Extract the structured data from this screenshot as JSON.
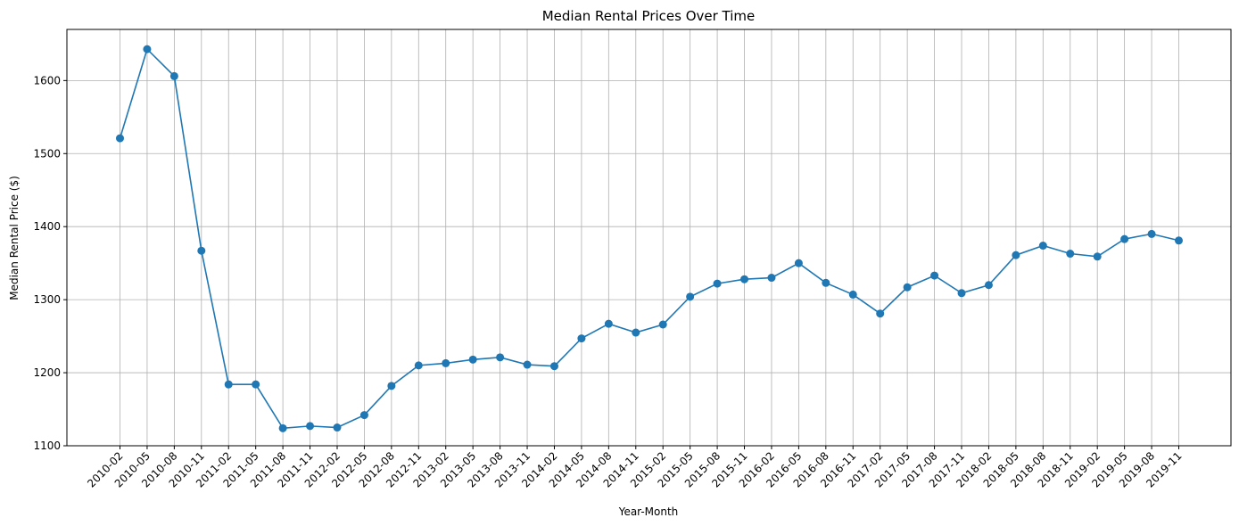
{
  "chart_data": {
    "type": "line",
    "title": "Median Rental Prices Over Time",
    "xlabel": "Year-Month",
    "ylabel": "Median Rental Price ($)",
    "ylim": [
      1100,
      1670
    ],
    "yticks": [
      1100,
      1200,
      1300,
      1400,
      1500,
      1600
    ],
    "grid": true,
    "series_color": "#1f77b4",
    "categories": [
      "2010-02",
      "2010-05",
      "2010-08",
      "2010-11",
      "2011-02",
      "2011-05",
      "2011-08",
      "2011-11",
      "2012-02",
      "2012-05",
      "2012-08",
      "2012-11",
      "2013-02",
      "2013-05",
      "2013-08",
      "2013-11",
      "2014-02",
      "2014-05",
      "2014-08",
      "2014-11",
      "2015-02",
      "2015-05",
      "2015-08",
      "2015-11",
      "2016-02",
      "2016-05",
      "2016-08",
      "2016-11",
      "2017-02",
      "2017-05",
      "2017-08",
      "2017-11",
      "2018-02",
      "2018-05",
      "2018-08",
      "2018-11",
      "2019-02",
      "2019-05",
      "2019-08",
      "2019-11"
    ],
    "values": [
      1521,
      1643,
      1606,
      1367,
      1184,
      1184,
      1124,
      1127,
      1125,
      1142,
      1182,
      1210,
      1213,
      1218,
      1221,
      1211,
      1209,
      1247,
      1267,
      1255,
      1266,
      1304,
      1322,
      1328,
      1330,
      1350,
      1323,
      1307,
      1281,
      1317,
      1333,
      1309,
      1320,
      1361,
      1374,
      1363,
      1359,
      1383,
      1390,
      1381
    ]
  }
}
